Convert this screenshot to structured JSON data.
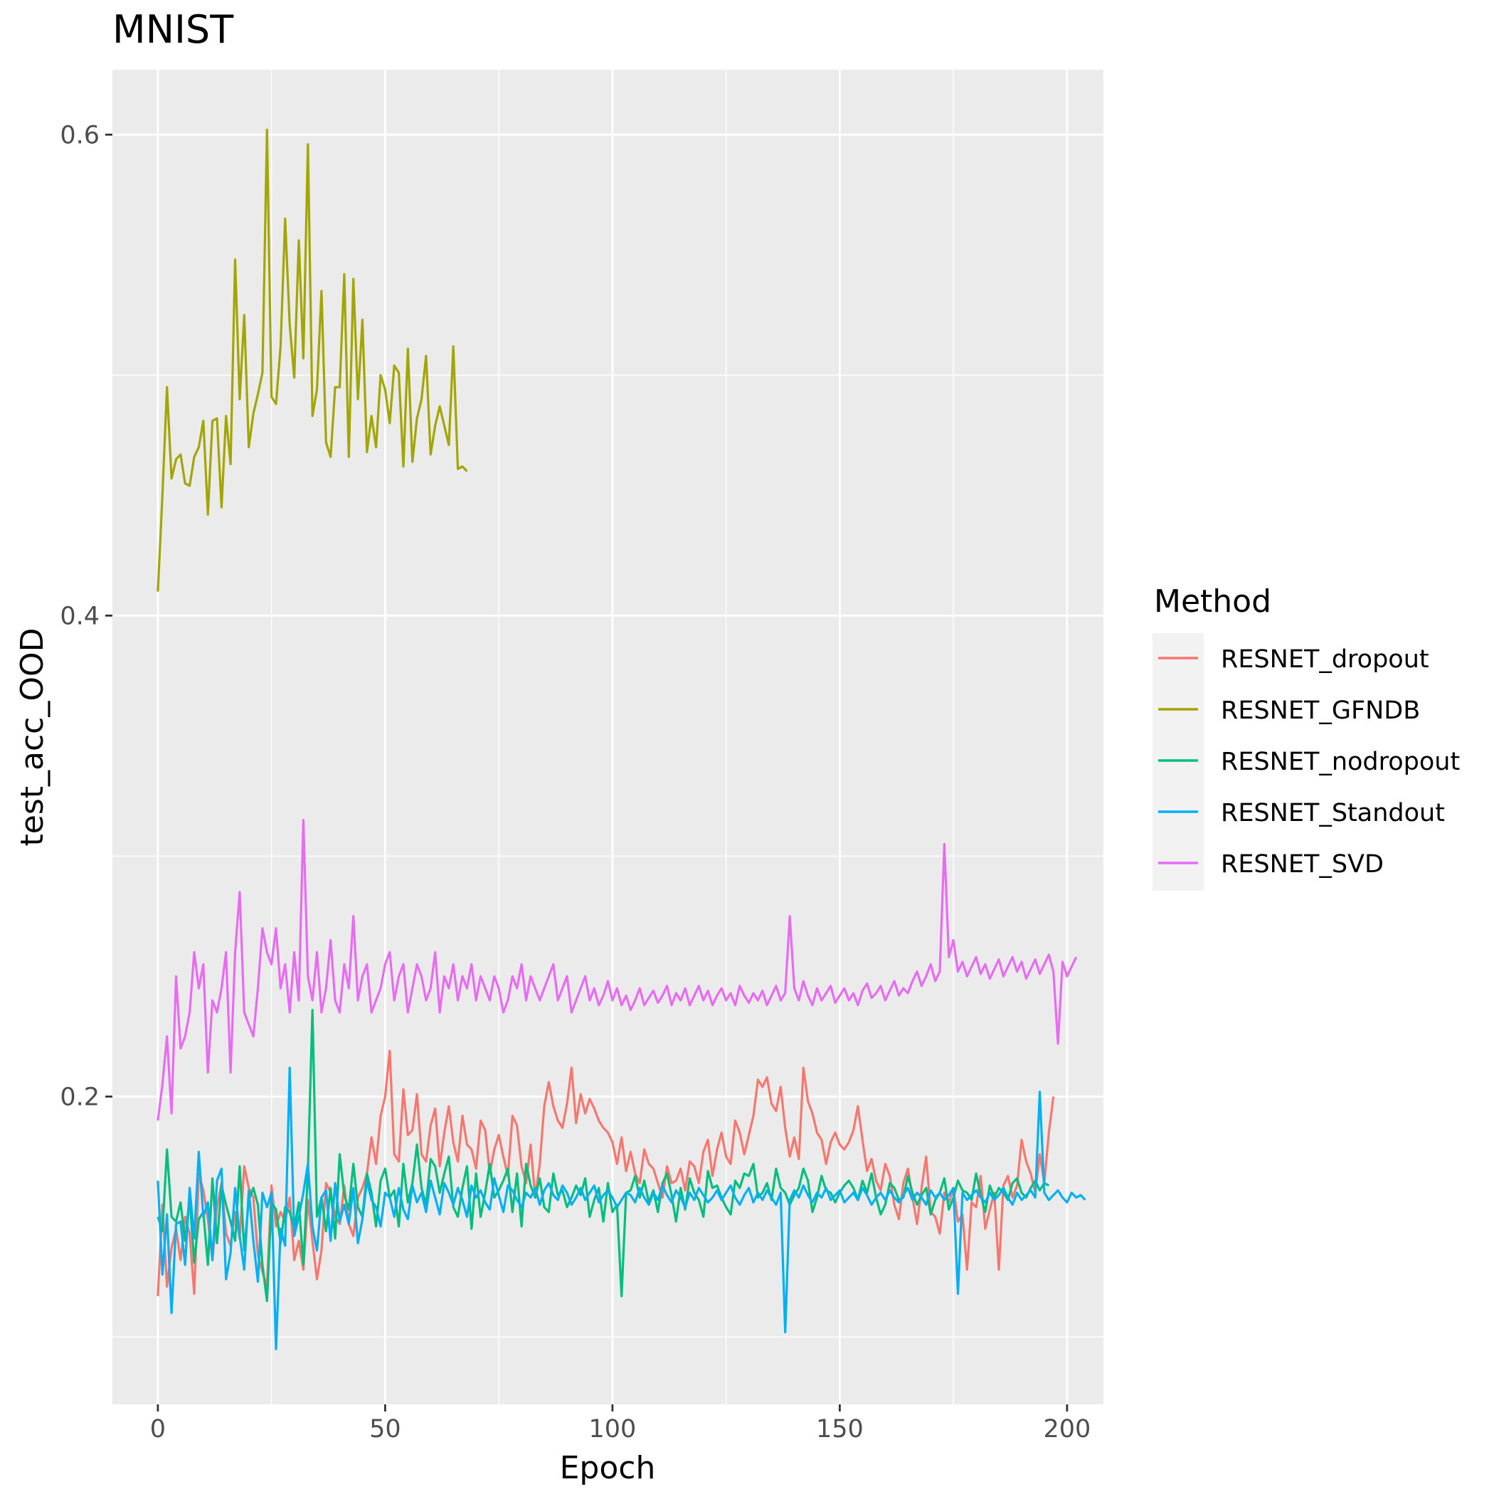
{
  "chart_data": {
    "type": "line",
    "title": "MNIST",
    "xlabel": "Epoch",
    "ylabel": "test_acc_OOD",
    "xlim": [
      -10,
      208
    ],
    "ylim": [
      0.072,
      0.627
    ],
    "x_ticks": [
      0,
      50,
      100,
      150,
      200
    ],
    "x_tick_labels": [
      "0",
      "50",
      "100",
      "150",
      "200"
    ],
    "y_ticks": [
      0.2,
      0.4,
      0.6
    ],
    "y_tick_labels": [
      "0.2",
      "0.4",
      "0.6"
    ],
    "y_minor_ticks": [
      0.1,
      0.3,
      0.5
    ],
    "x_minor_ticks": [
      25,
      75,
      125,
      175
    ],
    "grid": true,
    "legend": {
      "title": "Method",
      "position": "right"
    },
    "series": [
      {
        "name": "RESNET_dropout",
        "color": "#F8766D",
        "values": [
          0.117,
          0.155,
          0.121,
          0.137,
          0.145,
          0.132,
          0.15,
          0.143,
          0.118,
          0.168,
          0.161,
          0.149,
          0.132,
          0.154,
          0.164,
          0.143,
          0.138,
          0.152,
          0.141,
          0.171,
          0.162,
          0.158,
          0.134,
          0.127,
          0.121,
          0.163,
          0.146,
          0.152,
          0.148,
          0.158,
          0.132,
          0.14,
          0.128,
          0.157,
          0.14,
          0.124,
          0.136,
          0.164,
          0.16,
          0.15,
          0.147,
          0.163,
          0.147,
          0.142,
          0.158,
          0.162,
          0.168,
          0.183,
          0.172,
          0.192,
          0.2,
          0.219,
          0.176,
          0.173,
          0.203,
          0.184,
          0.186,
          0.201,
          0.176,
          0.173,
          0.188,
          0.195,
          0.171,
          0.185,
          0.196,
          0.181,
          0.173,
          0.192,
          0.18,
          0.178,
          0.17,
          0.19,
          0.186,
          0.168,
          0.178,
          0.184,
          0.175,
          0.167,
          0.192,
          0.188,
          0.171,
          0.164,
          0.18,
          0.158,
          0.172,
          0.196,
          0.206,
          0.196,
          0.19,
          0.187,
          0.197,
          0.212,
          0.189,
          0.201,
          0.193,
          0.199,
          0.195,
          0.19,
          0.187,
          0.185,
          0.181,
          0.172,
          0.183,
          0.169,
          0.177,
          0.168,
          0.164,
          0.178,
          0.172,
          0.17,
          0.164,
          0.158,
          0.171,
          0.164,
          0.165,
          0.17,
          0.161,
          0.173,
          0.171,
          0.164,
          0.177,
          0.182,
          0.167,
          0.178,
          0.185,
          0.175,
          0.172,
          0.19,
          0.185,
          0.176,
          0.184,
          0.192,
          0.207,
          0.204,
          0.208,
          0.197,
          0.194,
          0.204,
          0.187,
          0.175,
          0.183,
          0.174,
          0.212,
          0.198,
          0.193,
          0.185,
          0.182,
          0.172,
          0.181,
          0.185,
          0.18,
          0.178,
          0.181,
          0.186,
          0.196,
          0.182,
          0.169,
          0.174,
          0.165,
          0.161,
          0.172,
          0.167,
          0.155,
          0.149,
          0.164,
          0.17,
          0.158,
          0.147,
          0.162,
          0.175,
          0.152,
          0.15,
          0.143,
          0.16,
          0.156,
          0.162,
          0.148,
          0.151,
          0.128,
          0.156,
          0.154,
          0.167,
          0.145,
          0.153,
          0.16,
          0.128,
          0.163,
          0.167,
          0.158,
          0.163,
          0.182,
          0.173,
          0.168,
          0.16,
          0.176,
          0.164,
          0.185,
          0.2
        ]
      },
      {
        "name": "RESNET_GFNDB",
        "color": "#A3A500",
        "values": [
          0.41,
          0.45,
          0.495,
          0.457,
          0.465,
          0.467,
          0.455,
          0.454,
          0.466,
          0.47,
          0.481,
          0.442,
          0.481,
          0.482,
          0.445,
          0.483,
          0.463,
          0.548,
          0.49,
          0.525,
          0.47,
          0.484,
          0.492,
          0.501,
          0.602,
          0.491,
          0.488,
          0.512,
          0.565,
          0.521,
          0.499,
          0.556,
          0.507,
          0.596,
          0.483,
          0.494,
          0.535,
          0.472,
          0.466,
          0.495,
          0.495,
          0.542,
          0.466,
          0.54,
          0.49,
          0.523,
          0.468,
          0.483,
          0.47,
          0.5,
          0.494,
          0.48,
          0.504,
          0.501,
          0.462,
          0.511,
          0.464,
          0.482,
          0.49,
          0.508,
          0.467,
          0.479,
          0.487,
          0.479,
          0.471,
          0.512,
          0.461,
          0.462,
          0.46
        ]
      },
      {
        "name": "RESNET_nodropout",
        "color": "#00BF7D",
        "values": [
          0.15,
          0.144,
          0.178,
          0.15,
          0.148,
          0.156,
          0.14,
          0.158,
          0.131,
          0.149,
          0.152,
          0.13,
          0.166,
          0.139,
          0.163,
          0.155,
          0.148,
          0.14,
          0.171,
          0.136,
          0.157,
          0.162,
          0.155,
          0.13,
          0.115,
          0.156,
          0.153,
          0.139,
          0.154,
          0.152,
          0.145,
          0.156,
          0.13,
          0.169,
          0.236,
          0.15,
          0.158,
          0.144,
          0.162,
          0.141,
          0.176,
          0.159,
          0.153,
          0.172,
          0.154,
          0.15,
          0.168,
          0.16,
          0.146,
          0.165,
          0.17,
          0.158,
          0.161,
          0.146,
          0.172,
          0.156,
          0.164,
          0.18,
          0.162,
          0.155,
          0.174,
          0.171,
          0.16,
          0.168,
          0.175,
          0.154,
          0.15,
          0.162,
          0.171,
          0.145,
          0.168,
          0.15,
          0.16,
          0.172,
          0.158,
          0.161,
          0.165,
          0.17,
          0.152,
          0.168,
          0.146,
          0.172,
          0.163,
          0.158,
          0.166,
          0.154,
          0.152,
          0.168,
          0.159,
          0.161,
          0.154,
          0.158,
          0.163,
          0.159,
          0.166,
          0.15,
          0.157,
          0.162,
          0.148,
          0.164,
          0.152,
          0.155,
          0.117,
          0.16,
          0.161,
          0.167,
          0.158,
          0.165,
          0.156,
          0.161,
          0.152,
          0.164,
          0.168,
          0.159,
          0.148,
          0.162,
          0.153,
          0.166,
          0.16,
          0.157,
          0.15,
          0.169,
          0.162,
          0.163,
          0.158,
          0.154,
          0.151,
          0.165,
          0.162,
          0.168,
          0.167,
          0.172,
          0.158,
          0.16,
          0.164,
          0.157,
          0.17,
          0.162,
          0.16,
          0.155,
          0.159,
          0.162,
          0.17,
          0.165,
          0.152,
          0.158,
          0.167,
          0.161,
          0.16,
          0.156,
          0.16,
          0.163,
          0.165,
          0.162,
          0.157,
          0.165,
          0.16,
          0.168,
          0.158,
          0.151,
          0.155,
          0.164,
          0.162,
          0.157,
          0.158,
          0.167,
          0.16,
          0.155,
          0.159,
          0.162,
          0.151,
          0.157,
          0.16,
          0.166,
          0.153,
          0.158,
          0.165,
          0.161,
          0.16,
          0.157,
          0.168,
          0.159,
          0.152,
          0.163,
          0.158,
          0.162,
          0.16,
          0.157,
          0.164,
          0.166,
          0.16,
          0.158,
          0.162,
          0.165,
          0.161,
          0.164,
          0.163
        ]
      },
      {
        "name": "RESNET_Standout",
        "color": "#00B0F6",
        "values": [
          0.165,
          0.126,
          0.151,
          0.11,
          0.147,
          0.148,
          0.13,
          0.162,
          0.141,
          0.177,
          0.15,
          0.156,
          0.132,
          0.165,
          0.17,
          0.124,
          0.135,
          0.162,
          0.142,
          0.128,
          0.161,
          0.14,
          0.123,
          0.16,
          0.154,
          0.16,
          0.095,
          0.145,
          0.138,
          0.212,
          0.142,
          0.15,
          0.16,
          0.172,
          0.146,
          0.136,
          0.158,
          0.161,
          0.14,
          0.164,
          0.148,
          0.155,
          0.147,
          0.162,
          0.139,
          0.149,
          0.165,
          0.157,
          0.154,
          0.146,
          0.16,
          0.158,
          0.15,
          0.162,
          0.153,
          0.149,
          0.163,
          0.156,
          0.16,
          0.152,
          0.165,
          0.158,
          0.151,
          0.164,
          0.16,
          0.155,
          0.162,
          0.157,
          0.15,
          0.163,
          0.158,
          0.161,
          0.156,
          0.153,
          0.166,
          0.159,
          0.152,
          0.163,
          0.161,
          0.157,
          0.154,
          0.16,
          0.158,
          0.162,
          0.155,
          0.161,
          0.164,
          0.159,
          0.157,
          0.163,
          0.16,
          0.155,
          0.158,
          0.162,
          0.157,
          0.16,
          0.163,
          0.156,
          0.159,
          0.161,
          0.158,
          0.154,
          0.157,
          0.16,
          0.159,
          0.156,
          0.162,
          0.158,
          0.155,
          0.16,
          0.157,
          0.163,
          0.159,
          0.156,
          0.161,
          0.158,
          0.154,
          0.16,
          0.157,
          0.162,
          0.159,
          0.156,
          0.158,
          0.161,
          0.157,
          0.16,
          0.163,
          0.158,
          0.155,
          0.159,
          0.162,
          0.156,
          0.16,
          0.157,
          0.161,
          0.158,
          0.155,
          0.16,
          0.102,
          0.157,
          0.161,
          0.158,
          0.163,
          0.159,
          0.156,
          0.16,
          0.158,
          0.162,
          0.157,
          0.159,
          0.161,
          0.156,
          0.158,
          0.16,
          0.157,
          0.162,
          0.159,
          0.155,
          0.158,
          0.16,
          0.157,
          0.161,
          0.158,
          0.156,
          0.159,
          0.162,
          0.157,
          0.16,
          0.158,
          0.155,
          0.161,
          0.158,
          0.16,
          0.157,
          0.159,
          0.162,
          0.118,
          0.16,
          0.157,
          0.159,
          0.161,
          0.158,
          0.156,
          0.16,
          0.157,
          0.159,
          0.162,
          0.158,
          0.155,
          0.16,
          0.157,
          0.159,
          0.161,
          0.158,
          0.202,
          0.16,
          0.157,
          0.159,
          0.161,
          0.158,
          0.156,
          0.16,
          0.158,
          0.159,
          0.157
        ]
      },
      {
        "name": "RESNET_SVD",
        "color": "#E76BF3",
        "values": [
          0.19,
          0.205,
          0.225,
          0.193,
          0.25,
          0.22,
          0.225,
          0.235,
          0.26,
          0.245,
          0.255,
          0.21,
          0.24,
          0.235,
          0.245,
          0.26,
          0.21,
          0.26,
          0.285,
          0.235,
          0.23,
          0.225,
          0.245,
          0.27,
          0.26,
          0.255,
          0.27,
          0.245,
          0.255,
          0.235,
          0.26,
          0.24,
          0.315,
          0.25,
          0.24,
          0.26,
          0.235,
          0.245,
          0.265,
          0.24,
          0.235,
          0.255,
          0.245,
          0.275,
          0.24,
          0.25,
          0.255,
          0.235,
          0.24,
          0.245,
          0.255,
          0.26,
          0.24,
          0.25,
          0.255,
          0.235,
          0.245,
          0.255,
          0.25,
          0.24,
          0.245,
          0.26,
          0.235,
          0.25,
          0.245,
          0.255,
          0.24,
          0.25,
          0.245,
          0.255,
          0.24,
          0.25,
          0.245,
          0.24,
          0.25,
          0.245,
          0.235,
          0.24,
          0.25,
          0.245,
          0.255,
          0.24,
          0.25,
          0.245,
          0.24,
          0.245,
          0.25,
          0.255,
          0.24,
          0.245,
          0.25,
          0.235,
          0.24,
          0.245,
          0.25,
          0.24,
          0.245,
          0.238,
          0.242,
          0.248,
          0.24,
          0.245,
          0.238,
          0.242,
          0.236,
          0.24,
          0.245,
          0.238,
          0.241,
          0.244,
          0.239,
          0.242,
          0.246,
          0.238,
          0.243,
          0.24,
          0.245,
          0.238,
          0.242,
          0.246,
          0.24,
          0.244,
          0.238,
          0.242,
          0.245,
          0.24,
          0.243,
          0.238,
          0.246,
          0.242,
          0.239,
          0.243,
          0.24,
          0.244,
          0.238,
          0.242,
          0.246,
          0.24,
          0.243,
          0.275,
          0.245,
          0.24,
          0.248,
          0.242,
          0.238,
          0.245,
          0.24,
          0.243,
          0.246,
          0.239,
          0.242,
          0.245,
          0.24,
          0.243,
          0.238,
          0.244,
          0.247,
          0.241,
          0.243,
          0.246,
          0.24,
          0.244,
          0.248,
          0.242,
          0.245,
          0.243,
          0.248,
          0.252,
          0.246,
          0.25,
          0.255,
          0.248,
          0.252,
          0.305,
          0.258,
          0.265,
          0.252,
          0.256,
          0.25,
          0.254,
          0.258,
          0.251,
          0.255,
          0.249,
          0.253,
          0.257,
          0.25,
          0.254,
          0.258,
          0.252,
          0.256,
          0.249,
          0.253,
          0.257,
          0.251,
          0.255,
          0.259,
          0.252,
          0.222,
          0.256,
          0.25,
          0.254,
          0.258
        ]
      }
    ]
  }
}
